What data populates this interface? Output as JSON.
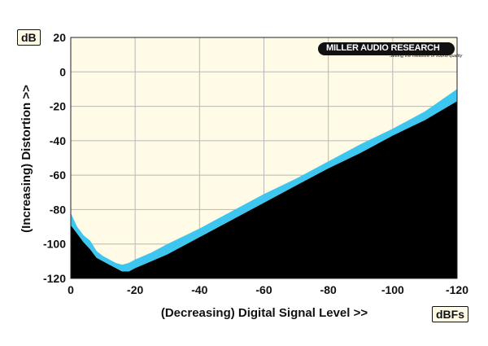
{
  "chart_data": {
    "type": "area",
    "title": "",
    "xlabel": "(Decreasing) Digital Signal Level >>",
    "ylabel": "(Increasing) Distortion >>",
    "x_unit": "dBFs",
    "y_unit": "dB",
    "xlim": [
      0,
      -120
    ],
    "ylim": [
      -120,
      20
    ],
    "x_ticks": [
      0,
      -20,
      -40,
      -60,
      -80,
      -100,
      -120
    ],
    "y_ticks": [
      20,
      0,
      -20,
      -40,
      -60,
      -80,
      -100,
      -120
    ],
    "grid": true,
    "logo": {
      "name": "MILLER AUDIO RESEARCH",
      "tagline": "Setting the measure of sound quality"
    },
    "colors": {
      "plot_bg": "#fffbe6",
      "band": "#3cc6f0",
      "fill": "#000000",
      "grid": "#b8b8b8"
    },
    "series": [
      {
        "name": "",
        "x": [
          0,
          -2,
          -4,
          -6,
          -8,
          -10,
          -12,
          -14,
          -16,
          -18,
          -20,
          -25,
          -30,
          -40,
          -50,
          -60,
          -70,
          -80,
          -90,
          -100,
          -110,
          -120
        ],
        "upper": [
          -82,
          -90,
          -95,
          -98,
          -104,
          -107,
          -109,
          -111,
          -112,
          -111,
          -109,
          -105,
          -100,
          -91,
          -81,
          -71,
          -62,
          -52,
          -42,
          -33,
          -23,
          -10
        ],
        "lower": [
          -89,
          -94,
          -99,
          -103,
          -108,
          -110,
          -112,
          -114,
          -116,
          -116,
          -114,
          -110,
          -106,
          -96,
          -86,
          -76,
          -66,
          -56,
          -47,
          -37,
          -28,
          -17
        ]
      }
    ]
  }
}
